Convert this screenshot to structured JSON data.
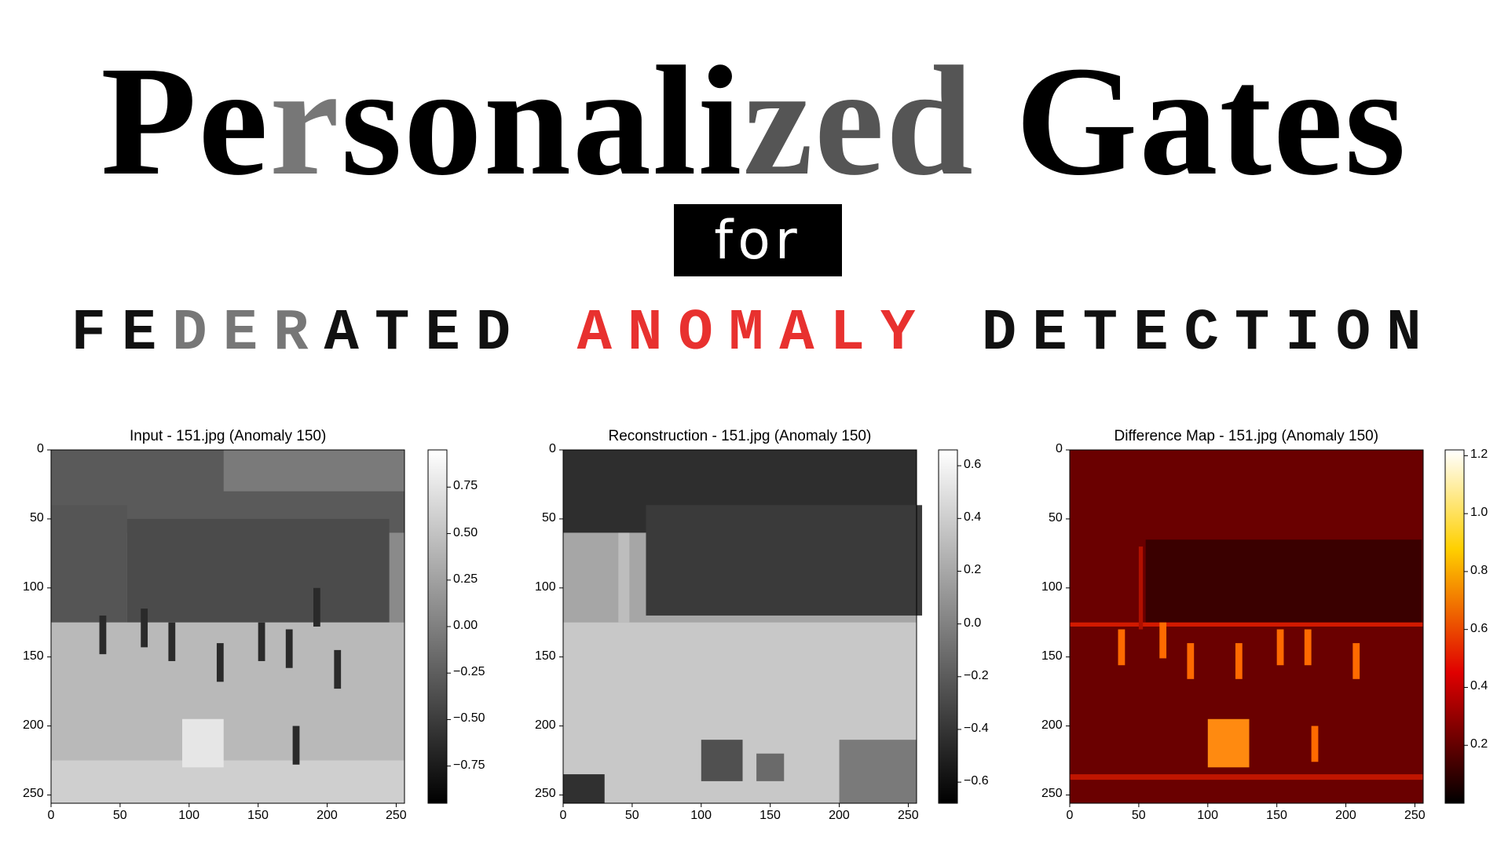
{
  "header": {
    "title_parts": [
      {
        "text": "Pe",
        "tone": "black"
      },
      {
        "text": "r",
        "tone": "gray"
      },
      {
        "text": "sonali",
        "tone": "black"
      },
      {
        "text": "zed",
        "tone": "gray2"
      },
      {
        "text": " Gates",
        "tone": "black"
      }
    ],
    "connector": "for",
    "subtitle_parts": [
      {
        "text": "FE",
        "tone": "black"
      },
      {
        "text": "DER",
        "tone": "gray"
      },
      {
        "text": "ATED ",
        "tone": "black"
      },
      {
        "text": "ANOMALY",
        "tone": "red"
      },
      {
        "text": " DETECTION",
        "tone": "black"
      }
    ]
  },
  "panels": [
    {
      "title": "Input - 151.jpg (Anomaly 150)",
      "cmap": "gray",
      "x_ticks": [
        "0",
        "50",
        "100",
        "150",
        "200",
        "250"
      ],
      "y_ticks": [
        "0",
        "50",
        "100",
        "150",
        "200",
        "250"
      ],
      "colorbar_ticks": [
        "0.75",
        "0.50",
        "0.25",
        "0.00",
        "−0.25",
        "−0.50",
        "−0.75"
      ],
      "colorbar_range": [
        -0.95,
        0.95
      ]
    },
    {
      "title": "Reconstruction - 151.jpg (Anomaly 150)",
      "cmap": "gray",
      "x_ticks": [
        "0",
        "50",
        "100",
        "150",
        "200",
        "250"
      ],
      "y_ticks": [
        "0",
        "50",
        "100",
        "150",
        "200",
        "250"
      ],
      "colorbar_ticks": [
        "0.6",
        "0.4",
        "0.2",
        "0.0",
        "−0.2",
        "−0.4",
        "−0.6"
      ],
      "colorbar_range": [
        -0.68,
        0.66
      ]
    },
    {
      "title": "Difference Map - 151.jpg (Anomaly 150)",
      "cmap": "hot",
      "x_ticks": [
        "0",
        "50",
        "100",
        "150",
        "200",
        "250"
      ],
      "y_ticks": [
        "0",
        "50",
        "100",
        "150",
        "200",
        "250"
      ],
      "colorbar_ticks": [
        "1.2",
        "1.0",
        "0.8",
        "0.6",
        "0.4",
        "0.2"
      ],
      "colorbar_range": [
        0.0,
        1.22
      ]
    }
  ]
}
